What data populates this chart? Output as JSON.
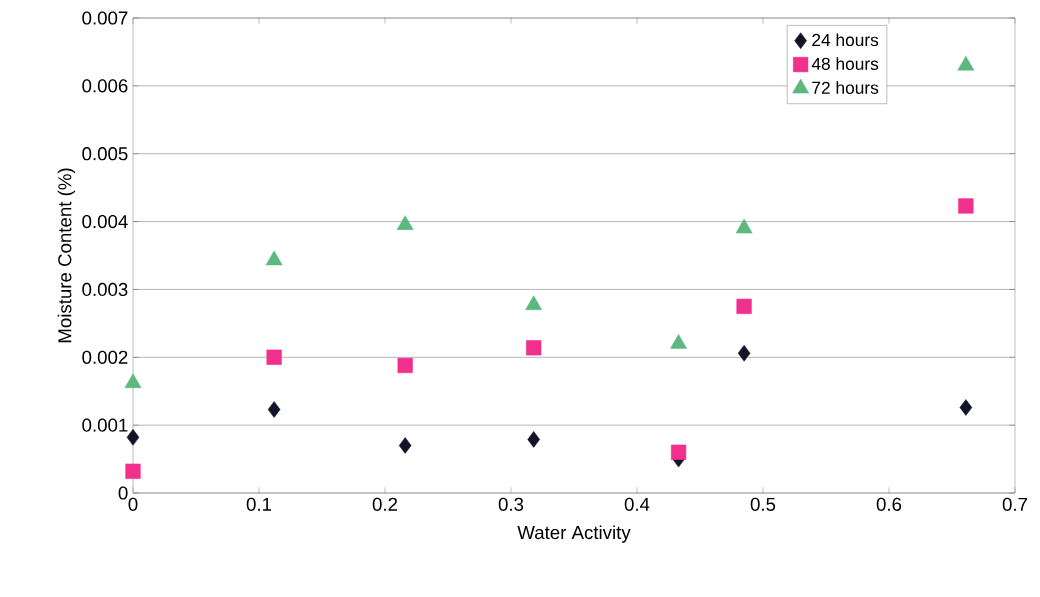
{
  "chart_data": {
    "type": "scatter",
    "xlabel": "Water Activity",
    "ylabel": "Moisture Content (%)",
    "xlim": [
      0,
      0.7
    ],
    "xticks": [
      0,
      0.1,
      0.2,
      0.3,
      0.4,
      0.5,
      0.6,
      0.7
    ],
    "ylim": [
      0,
      0.007
    ],
    "yticks": [
      0,
      0.001,
      0.002,
      0.003,
      0.004,
      0.005,
      0.006,
      0.007
    ],
    "grid": "y",
    "legend": "top right",
    "x": [
      0,
      0.112,
      0.216,
      0.318,
      0.433,
      0.485,
      0.661
    ],
    "series": [
      {
        "name": "24 hours",
        "color": "#141428",
        "marker": "diamond",
        "values": [
          0.00082,
          0.00123,
          0.0007,
          0.00079,
          0.0005,
          0.00206,
          0.00126
        ]
      },
      {
        "name": "48 hours",
        "color": "#f0308c",
        "marker": "square",
        "values": [
          0.00032,
          0.002,
          0.00188,
          0.00214,
          0.0006,
          0.00275,
          0.00423
        ]
      },
      {
        "name": "72 hours",
        "color": "#5cb87f",
        "marker": "triangle",
        "values": [
          0.00162,
          0.00343,
          0.00395,
          0.00277,
          0.0022,
          0.0039,
          0.0063
        ]
      }
    ]
  }
}
